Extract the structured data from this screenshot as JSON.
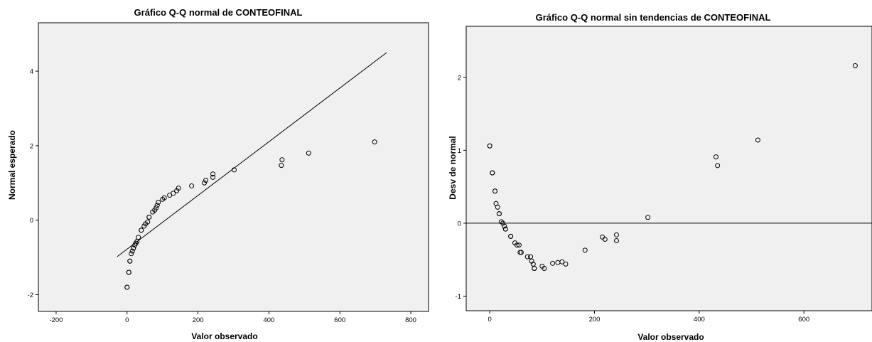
{
  "chart_data": [
    {
      "type": "scatter",
      "title": "Gráfico Q-Q normal de CONTEOFINAL",
      "xlabel": "Valor observado",
      "ylabel": "Normal esperado",
      "xlim": [
        -250,
        850
      ],
      "ylim": [
        -2.45,
        5.3
      ],
      "xticks": [
        -200,
        0,
        200,
        400,
        600,
        800
      ],
      "yticks": [
        -2,
        0,
        2,
        4
      ],
      "xtick_labels": [
        "-200",
        "0",
        "200",
        "400",
        "600",
        "800"
      ],
      "ytick_labels": [
        "-2",
        "0",
        "2",
        "4"
      ],
      "grid": false,
      "background": "#f0f0f0",
      "reference_line": [
        [
          -28,
          -0.98
        ],
        [
          732,
          4.5
        ]
      ],
      "points": [
        [
          0,
          -1.8
        ],
        [
          0,
          -1.8
        ],
        [
          5,
          -1.4
        ],
        [
          5,
          -1.4
        ],
        [
          8,
          -1.1
        ],
        [
          8,
          -1.1
        ],
        [
          12,
          -0.9
        ],
        [
          15,
          -0.83
        ],
        [
          18,
          -0.75
        ],
        [
          18,
          -0.75
        ],
        [
          22,
          -0.67
        ],
        [
          25,
          -0.62
        ],
        [
          28,
          -0.57
        ],
        [
          32,
          -0.46
        ],
        [
          40,
          -0.27
        ],
        [
          40,
          -0.27
        ],
        [
          48,
          -0.16
        ],
        [
          52,
          -0.1
        ],
        [
          58,
          -0.05
        ],
        [
          62,
          0.08
        ],
        [
          62,
          0.08
        ],
        [
          72,
          0.22
        ],
        [
          78,
          0.27
        ],
        [
          82,
          0.33
        ],
        [
          85,
          0.4
        ],
        [
          88,
          0.48
        ],
        [
          100,
          0.56
        ],
        [
          105,
          0.6
        ],
        [
          120,
          0.67
        ],
        [
          130,
          0.72
        ],
        [
          140,
          0.79
        ],
        [
          145,
          0.86
        ],
        [
          182,
          0.92
        ],
        [
          218,
          1.0
        ],
        [
          222,
          1.07
        ],
        [
          242,
          1.15
        ],
        [
          242,
          1.24
        ],
        [
          302,
          1.35
        ],
        [
          435,
          1.47
        ],
        [
          437,
          1.62
        ],
        [
          512,
          1.8
        ],
        [
          698,
          2.1
        ]
      ]
    },
    {
      "type": "scatter",
      "title": "Gráfico Q-Q normal sin tendencias de CONTEOFINAL",
      "xlabel": "Valor observado",
      "ylabel": "Desv de normal",
      "xlim": [
        -45,
        730
      ],
      "ylim": [
        -1.2,
        2.7
      ],
      "xticks": [
        0,
        200,
        400,
        600
      ],
      "yticks": [
        -1,
        0,
        1,
        2
      ],
      "xtick_labels": [
        "0",
        "200",
        "400",
        "600"
      ],
      "ytick_labels": [
        "-1",
        "0",
        "1",
        "2"
      ],
      "grid": false,
      "background": "#f0f0f0",
      "reference_line": [
        [
          -45,
          0
        ],
        [
          730,
          0
        ]
      ],
      "points": [
        [
          0,
          1.06
        ],
        [
          0,
          1.06
        ],
        [
          5,
          0.69
        ],
        [
          5,
          0.69
        ],
        [
          10,
          0.44
        ],
        [
          10,
          0.44
        ],
        [
          12,
          0.27
        ],
        [
          15,
          0.22
        ],
        [
          18,
          0.13
        ],
        [
          18,
          0.13
        ],
        [
          22,
          0.02
        ],
        [
          25,
          0.0
        ],
        [
          28,
          -0.04
        ],
        [
          30,
          -0.08
        ],
        [
          30,
          -0.08
        ],
        [
          40,
          -0.18
        ],
        [
          40,
          -0.18
        ],
        [
          48,
          -0.27
        ],
        [
          52,
          -0.3
        ],
        [
          56,
          -0.3
        ],
        [
          58,
          -0.4
        ],
        [
          60,
          -0.4
        ],
        [
          72,
          -0.46
        ],
        [
          78,
          -0.46
        ],
        [
          80,
          -0.52
        ],
        [
          83,
          -0.56
        ],
        [
          85,
          -0.62
        ],
        [
          85,
          -0.62
        ],
        [
          100,
          -0.59
        ],
        [
          104,
          -0.62
        ],
        [
          120,
          -0.55
        ],
        [
          130,
          -0.54
        ],
        [
          138,
          -0.53
        ],
        [
          145,
          -0.56
        ],
        [
          182,
          -0.37
        ],
        [
          215,
          -0.19
        ],
        [
          220,
          -0.22
        ],
        [
          242,
          -0.16
        ],
        [
          242,
          -0.24
        ],
        [
          302,
          0.08
        ],
        [
          432,
          0.91
        ],
        [
          435,
          0.79
        ],
        [
          512,
          1.14
        ],
        [
          698,
          2.16
        ]
      ]
    }
  ]
}
